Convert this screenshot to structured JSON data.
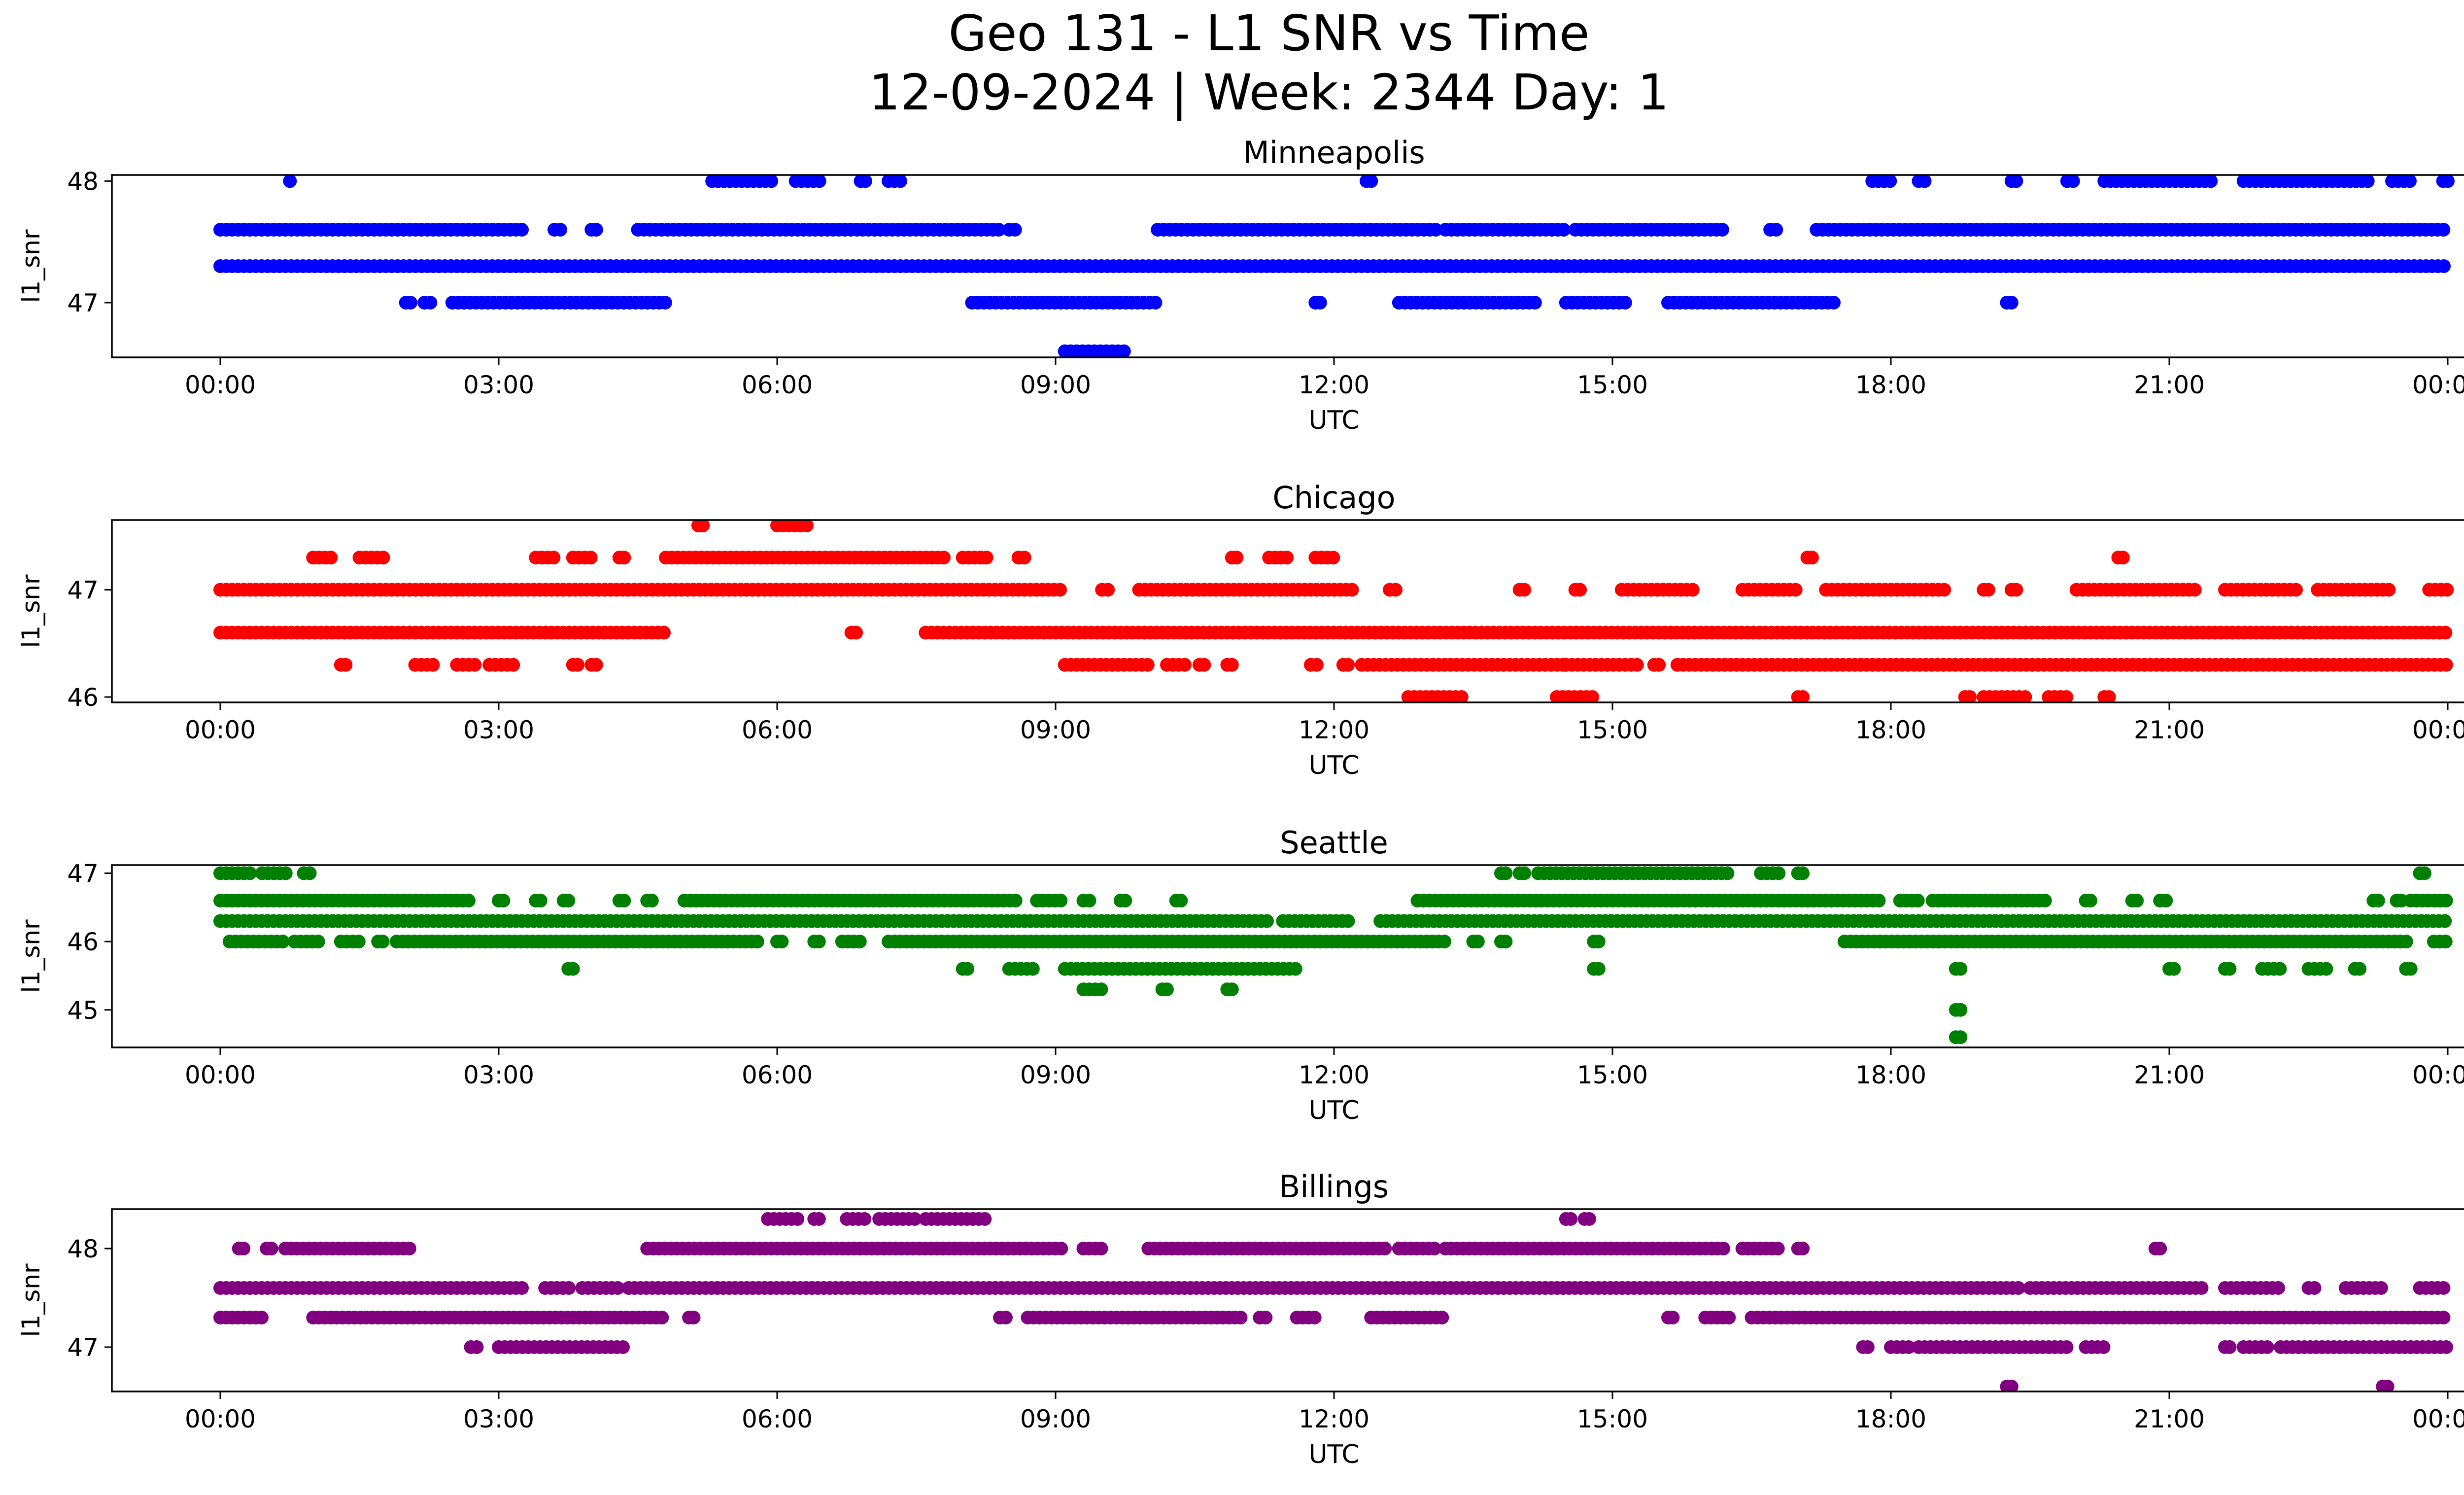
{
  "figure": {
    "title_line1": "Geo 131 - L1 SNR vs Time",
    "title_line2": "12-09-2024 | Week: 2344 Day: 1"
  },
  "colors": {
    "Minneapolis": "#0000ff",
    "Chicago": "#ff0000",
    "Seattle": "#008000",
    "Billings": "#800080"
  },
  "chart_data": [
    {
      "type": "scatter",
      "title": "Minneapolis",
      "xlabel": "UTC",
      "ylabel": "l1_snr",
      "xlim": [
        0,
        24
      ],
      "ylim": [
        46.55,
        48.05
      ],
      "x_ticks": [
        "00:00",
        "03:00",
        "06:00",
        "09:00",
        "12:00",
        "15:00",
        "18:00",
        "21:00",
        "00:00"
      ],
      "y_ticks": [
        47,
        48
      ],
      "series": [
        {
          "y": 48.0,
          "x": [
            [
              0.75,
              0.75
            ],
            [
              5.3,
              6.0
            ],
            [
              6.2,
              6.5
            ],
            [
              6.9,
              6.95
            ],
            [
              7.2,
              7.35
            ],
            [
              12.35,
              12.4
            ],
            [
              17.8,
              18.0
            ],
            [
              18.3,
              18.4
            ],
            [
              19.3,
              19.35
            ],
            [
              19.9,
              20.0
            ],
            [
              20.3,
              21.5
            ],
            [
              21.8,
              23.2
            ],
            [
              23.4,
              23.6
            ],
            [
              23.95,
              24.0
            ]
          ]
        },
        {
          "y": 47.6,
          "x": [
            [
              0.0,
              3.3
            ],
            [
              3.6,
              3.7
            ],
            [
              4.0,
              4.05
            ],
            [
              4.5,
              8.4
            ],
            [
              8.5,
              8.6
            ],
            [
              10.1,
              13.1
            ],
            [
              13.2,
              14.5
            ],
            [
              14.6,
              15.1
            ],
            [
              15.1,
              16.2
            ],
            [
              16.7,
              16.8
            ],
            [
              17.2,
              24.0
            ]
          ]
        },
        {
          "y": 47.3,
          "x": [
            [
              0.0,
              24.0
            ]
          ]
        },
        {
          "y": 47.0,
          "x": [
            [
              2.0,
              2.05
            ],
            [
              2.2,
              2.3
            ],
            [
              2.5,
              4.8
            ],
            [
              8.1,
              10.1
            ],
            [
              11.8,
              11.85
            ],
            [
              12.7,
              14.2
            ],
            [
              14.5,
              15.2
            ],
            [
              15.6,
              17.4
            ],
            [
              19.25,
              19.3
            ]
          ]
        },
        {
          "y": 46.6,
          "x": [
            [
              9.1,
              9.75
            ]
          ]
        }
      ]
    },
    {
      "type": "scatter",
      "title": "Chicago",
      "xlabel": "UTC",
      "ylabel": "l1_snr",
      "xlim": [
        0,
        24
      ],
      "ylim": [
        45.95,
        47.65
      ],
      "x_ticks": [
        "00:00",
        "03:00",
        "06:00",
        "09:00",
        "12:00",
        "15:00",
        "18:00",
        "21:00",
        "00:00"
      ],
      "y_ticks": [
        46,
        47
      ],
      "series": [
        {
          "y": 47.6,
          "x": [
            [
              5.15,
              5.2
            ],
            [
              6.0,
              6.35
            ]
          ]
        },
        {
          "y": 47.3,
          "x": [
            [
              1.0,
              1.2
            ],
            [
              1.5,
              1.8
            ],
            [
              3.4,
              3.6
            ],
            [
              3.8,
              4.0
            ],
            [
              4.3,
              4.35
            ],
            [
              4.8,
              7.8
            ],
            [
              8.0,
              8.3
            ],
            [
              8.6,
              8.7
            ],
            [
              10.9,
              10.95
            ],
            [
              11.3,
              11.5
            ],
            [
              11.8,
              12.0
            ],
            [
              17.1,
              17.15
            ],
            [
              20.45,
              20.5
            ]
          ]
        },
        {
          "y": 47.0,
          "x": [
            [
              0.0,
              9.1
            ],
            [
              9.5,
              9.6
            ],
            [
              9.9,
              12.2
            ],
            [
              12.6,
              12.7
            ],
            [
              14.0,
              14.05
            ],
            [
              14.6,
              14.65
            ],
            [
              15.1,
              15.9
            ],
            [
              16.4,
              17.0
            ],
            [
              17.3,
              18.6
            ],
            [
              19.0,
              19.05
            ],
            [
              19.3,
              19.35
            ],
            [
              20.0,
              21.3
            ],
            [
              21.6,
              22.4
            ],
            [
              22.6,
              23.4
            ],
            [
              23.8,
              24.0
            ]
          ]
        },
        {
          "y": 46.6,
          "x": [
            [
              0.0,
              4.8
            ],
            [
              6.8,
              6.85
            ],
            [
              7.6,
              24.0
            ]
          ]
        },
        {
          "y": 46.3,
          "x": [
            [
              1.3,
              1.35
            ],
            [
              2.1,
              2.3
            ],
            [
              2.55,
              2.75
            ],
            [
              2.9,
              3.2
            ],
            [
              3.8,
              3.85
            ],
            [
              4.0,
              4.05
            ],
            [
              9.1,
              10.0
            ],
            [
              10.2,
              10.4
            ],
            [
              10.55,
              10.6
            ],
            [
              10.85,
              10.9
            ],
            [
              11.75,
              11.85
            ],
            [
              12.1,
              12.15
            ],
            [
              12.3,
              14.5
            ],
            [
              14.5,
              15.3
            ],
            [
              15.45,
              15.5
            ],
            [
              15.7,
              24.0
            ]
          ]
        },
        {
          "y": 46.0,
          "x": [
            [
              12.8,
              13.4
            ],
            [
              14.4,
              14.8
            ],
            [
              17.0,
              17.05
            ],
            [
              18.8,
              18.85
            ],
            [
              19.0,
              19.45
            ],
            [
              19.7,
              19.95
            ],
            [
              20.3,
              20.35
            ]
          ]
        }
      ]
    },
    {
      "type": "scatter",
      "title": "Seattle",
      "xlabel": "UTC",
      "ylabel": "l1_snr",
      "xlim": [
        0,
        24
      ],
      "ylim": [
        44.45,
        47.12
      ],
      "x_ticks": [
        "00:00",
        "03:00",
        "06:00",
        "09:00",
        "12:00",
        "15:00",
        "18:00",
        "21:00",
        "00:00"
      ],
      "y_ticks": [
        45,
        46,
        47
      ],
      "series": [
        {
          "y": 47.0,
          "x": [
            [
              0.0,
              0.35
            ],
            [
              0.45,
              0.75
            ],
            [
              0.9,
              1.0
            ],
            [
              13.8,
              13.85
            ],
            [
              14.0,
              14.05
            ],
            [
              14.2,
              16.3
            ],
            [
              16.6,
              16.8
            ],
            [
              17.0,
              17.05
            ],
            [
              23.7,
              23.75
            ]
          ]
        },
        {
          "y": 46.6,
          "x": [
            [
              0.0,
              2.7
            ],
            [
              3.0,
              3.05
            ],
            [
              3.4,
              3.45
            ],
            [
              3.7,
              3.75
            ],
            [
              4.3,
              4.35
            ],
            [
              4.6,
              4.65
            ],
            [
              5.0,
              8.6
            ],
            [
              8.8,
              9.1
            ],
            [
              9.3,
              9.4
            ],
            [
              9.7,
              9.75
            ],
            [
              10.3,
              10.35
            ],
            [
              12.9,
              17.9
            ],
            [
              18.1,
              18.3
            ],
            [
              18.45,
              19.7
            ],
            [
              20.1,
              20.15
            ],
            [
              20.6,
              20.65
            ],
            [
              20.9,
              21.0
            ],
            [
              23.2,
              23.25
            ],
            [
              23.45,
              23.5
            ],
            [
              23.6,
              24.0
            ]
          ]
        },
        {
          "y": 46.3,
          "x": [
            [
              0.0,
              11.3
            ],
            [
              11.45,
              12.2
            ],
            [
              12.5,
              24.0
            ]
          ]
        },
        {
          "y": 46.0,
          "x": [
            [
              0.1,
              0.7
            ],
            [
              0.8,
              1.1
            ],
            [
              1.3,
              1.5
            ],
            [
              1.7,
              1.75
            ],
            [
              1.9,
              5.8
            ],
            [
              6.0,
              6.05
            ],
            [
              6.4,
              6.45
            ],
            [
              6.7,
              6.9
            ],
            [
              7.2,
              13.2
            ],
            [
              13.5,
              13.55
            ],
            [
              13.8,
              13.85
            ],
            [
              14.8,
              14.85
            ],
            [
              17.5,
              23.6
            ],
            [
              23.85,
              24.0
            ]
          ]
        },
        {
          "y": 45.6,
          "x": [
            [
              3.75,
              3.8
            ],
            [
              8.0,
              8.05
            ],
            [
              8.5,
              8.8
            ],
            [
              9.1,
              11.6
            ],
            [
              14.8,
              14.85
            ],
            [
              18.7,
              18.75
            ],
            [
              21.0,
              21.05
            ],
            [
              21.6,
              21.65
            ],
            [
              22.0,
              22.2
            ],
            [
              22.5,
              22.7
            ],
            [
              23.0,
              23.05
            ],
            [
              23.55,
              23.6
            ]
          ]
        },
        {
          "y": 45.3,
          "x": [
            [
              9.3,
              9.55
            ],
            [
              10.15,
              10.2
            ],
            [
              10.85,
              10.9
            ]
          ]
        },
        {
          "y": 45.0,
          "x": [
            [
              18.7,
              18.75
            ]
          ]
        },
        {
          "y": 44.6,
          "x": [
            [
              18.7,
              18.75
            ]
          ]
        }
      ]
    },
    {
      "type": "scatter",
      "title": "Billings",
      "xlabel": "UTC",
      "ylabel": "l1_snr",
      "xlim": [
        0,
        24
      ],
      "ylim": [
        46.55,
        48.4
      ],
      "x_ticks": [
        "00:00",
        "03:00",
        "06:00",
        "09:00",
        "12:00",
        "15:00",
        "18:00",
        "21:00",
        "00:00"
      ],
      "y_ticks": [
        47,
        48
      ],
      "series": [
        {
          "y": 48.3,
          "x": [
            [
              5.9,
              6.25
            ],
            [
              6.4,
              6.45
            ],
            [
              6.75,
              6.95
            ],
            [
              7.1,
              7.5
            ],
            [
              7.6,
              8.3
            ],
            [
              14.5,
              14.55
            ],
            [
              14.7,
              14.75
            ]
          ]
        },
        {
          "y": 48.0,
          "x": [
            [
              0.2,
              0.25
            ],
            [
              0.5,
              0.55
            ],
            [
              0.7,
              2.1
            ],
            [
              4.6,
              9.1
            ],
            [
              9.3,
              9.5
            ],
            [
              10.0,
              12.6
            ],
            [
              12.7,
              13.1
            ],
            [
              13.2,
              16.2
            ],
            [
              16.4,
              16.8
            ],
            [
              17.0,
              17.05
            ],
            [
              20.85,
              20.9
            ]
          ]
        },
        {
          "y": 47.6,
          "x": [
            [
              0.0,
              3.3
            ],
            [
              3.5,
              3.8
            ],
            [
              3.9,
              4.3
            ],
            [
              4.4,
              19.4
            ],
            [
              19.5,
              21.4
            ],
            [
              21.6,
              22.2
            ],
            [
              22.5,
              22.6
            ],
            [
              22.9,
              23.3
            ],
            [
              23.7,
              24.0
            ]
          ]
        },
        {
          "y": 47.3,
          "x": [
            [
              0.0,
              0.5
            ],
            [
              1.0,
              4.8
            ],
            [
              5.05,
              5.1
            ],
            [
              8.4,
              8.5
            ],
            [
              8.7,
              11.0
            ],
            [
              11.2,
              11.3
            ],
            [
              11.6,
              11.8
            ],
            [
              12.4,
              13.2
            ],
            [
              15.6,
              15.65
            ],
            [
              16.0,
              16.3
            ],
            [
              16.5,
              24.0
            ]
          ]
        },
        {
          "y": 47.0,
          "x": [
            [
              2.7,
              2.8
            ],
            [
              3.0,
              4.4
            ],
            [
              17.7,
              17.75
            ],
            [
              18.0,
              18.2
            ],
            [
              18.3,
              19.9
            ],
            [
              20.1,
              20.3
            ],
            [
              21.6,
              21.65
            ],
            [
              21.8,
              22.1
            ],
            [
              22.2,
              24.0
            ]
          ]
        },
        {
          "y": 46.6,
          "x": [
            [
              19.25,
              19.3
            ],
            [
              23.3,
              23.35
            ]
          ]
        }
      ]
    }
  ]
}
